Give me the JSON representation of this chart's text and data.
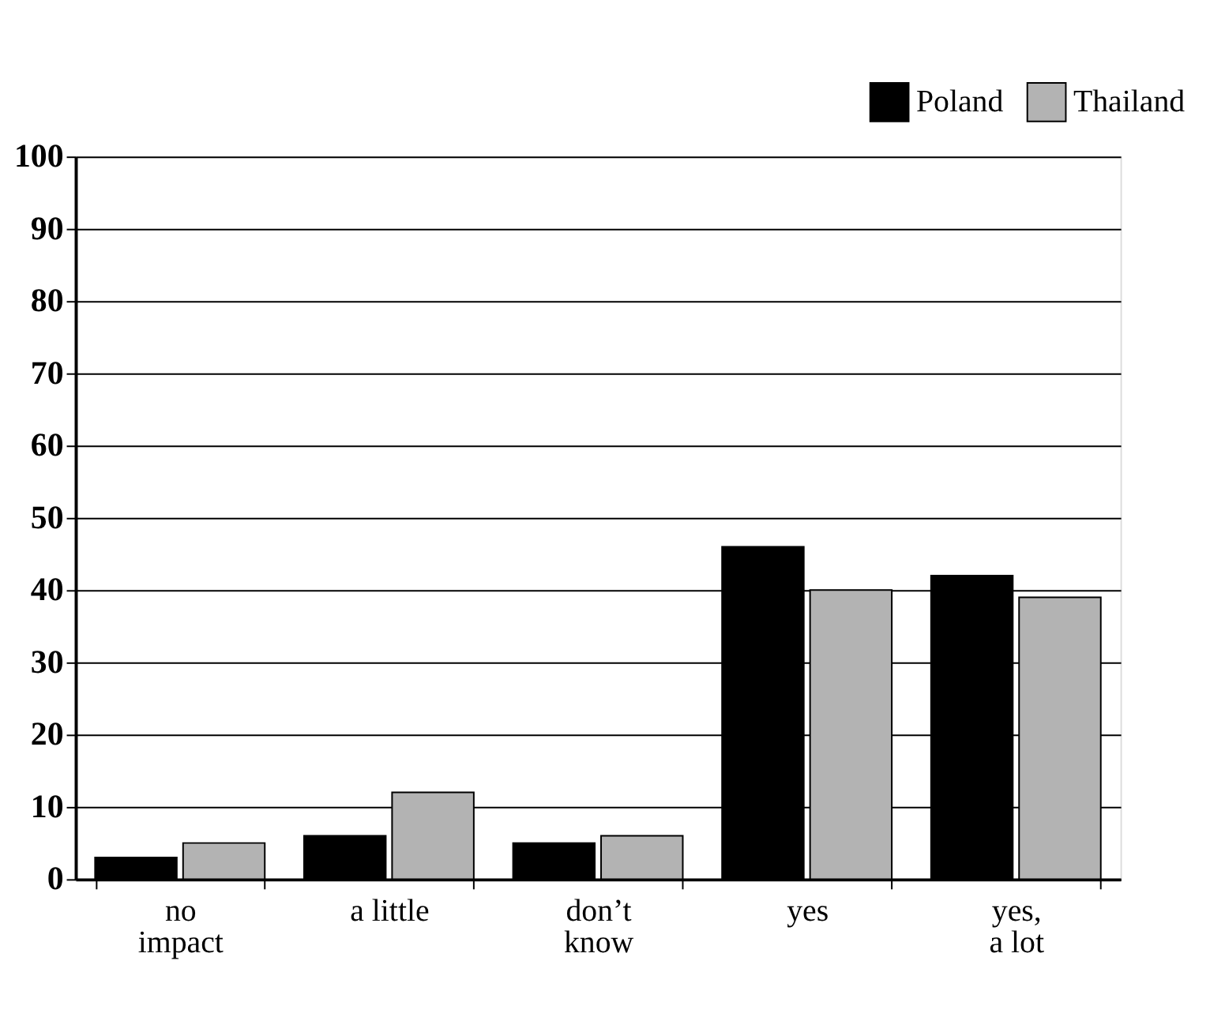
{
  "chart_data": {
    "type": "bar",
    "categories": [
      "no\nimpact",
      "a little",
      "don’t\nknow",
      "yes",
      "yes,\na lot"
    ],
    "series": [
      {
        "name": "Poland",
        "color": "#000000",
        "values": [
          3,
          6,
          5,
          46,
          42
        ]
      },
      {
        "name": "Thailand",
        "color": "#b3b3b3",
        "values": [
          5,
          12,
          6,
          40,
          39
        ]
      }
    ],
    "ylim": [
      0,
      100
    ],
    "yticks": [
      0,
      10,
      20,
      30,
      40,
      50,
      60,
      70,
      80,
      90,
      100
    ],
    "grid": "y",
    "legend": "top right"
  }
}
